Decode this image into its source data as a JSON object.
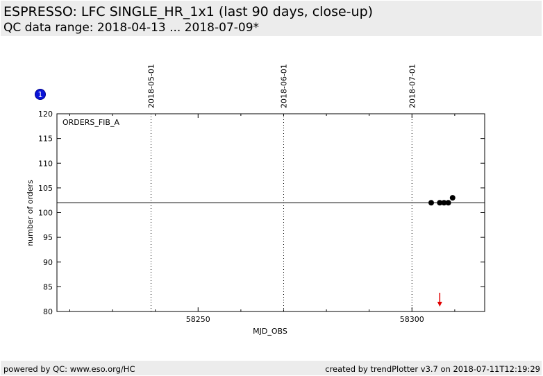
{
  "header": {
    "title": "ESPRESSO: LFC SINGLE_HR_1x1 (last 90 days, close-up)",
    "subtitle": "QC data range: 2018-04-13 ... 2018-07-09*"
  },
  "footer": {
    "left": "powered by QC: www.eso.org/HC",
    "right": "created by trendPlotter v3.7 on 2018-07-11T12:19:29"
  },
  "badge": {
    "label": "1",
    "color": "#0a14d8"
  },
  "colors": {
    "points": "#000000",
    "outlier_arrow": "#e00000",
    "reference_line": "#000000"
  },
  "chart_data": {
    "type": "scatter",
    "panel_label": "ORDERS_FIB_A",
    "xlabel": "MJD_OBS",
    "ylabel": "number of orders",
    "xlim": [
      58217,
      58317
    ],
    "ylim": [
      80,
      120
    ],
    "x_ticks": [
      58250,
      58300
    ],
    "y_ticks": [
      80,
      85,
      90,
      95,
      100,
      105,
      110,
      115,
      120
    ],
    "date_markers": [
      {
        "label": "2018-05-01",
        "x": 58239
      },
      {
        "label": "2018-06-01",
        "x": 58270
      },
      {
        "label": "2018-07-01",
        "x": 58300
      }
    ],
    "reference_line": 102,
    "points": [
      {
        "x": 58304.5,
        "y": 102
      },
      {
        "x": 58306.5,
        "y": 102
      },
      {
        "x": 58307.5,
        "y": 102
      },
      {
        "x": 58308.5,
        "y": 102
      },
      {
        "x": 58309.5,
        "y": 103
      }
    ],
    "outliers_below": [
      {
        "x": 58306.5
      }
    ],
    "grid": false
  }
}
